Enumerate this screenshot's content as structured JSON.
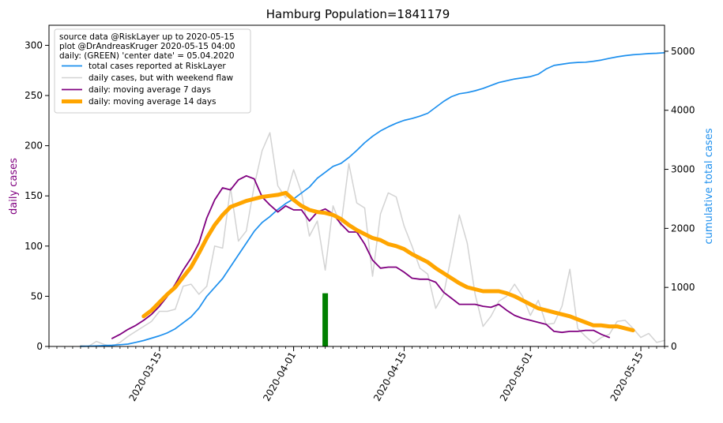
{
  "chart_data": {
    "type": "line",
    "title": "Hamburg Population=1841179",
    "ylabel_left": "daily cases",
    "ylabel_right": "cumulative total cases",
    "ylim_left": [
      0,
      320
    ],
    "ylim_right": [
      0,
      5440
    ],
    "yticks_left": [
      0,
      50,
      100,
      150,
      200,
      250,
      300
    ],
    "yticks_right": [
      0,
      1000,
      2000,
      3000,
      4000,
      5000
    ],
    "x_dates": [
      "2020-03-15",
      "2020-04-01",
      "2020-04-15",
      "2020-05-01",
      "2020-05-15"
    ],
    "xticks_major": [
      "2020-03-15",
      "2020-04-01",
      "2020-04-15",
      "2020-05-01",
      "2020-05-15"
    ],
    "x_range": [
      "2020-03-01",
      "2020-05-18"
    ],
    "grid": false,
    "legend_position": "top-left",
    "legend_header": [
      "source data @RiskLayer up to 2020-05-15",
      "plot @DrAndreasKruger 2020-05-15 04:00",
      "daily: (GREEN) 'center date' = 05.04.2020"
    ],
    "center_date_bar": {
      "date": "2020-04-05",
      "value": 53,
      "color": "#008000"
    },
    "series": [
      {
        "name": "total cases reported at RiskLayer",
        "axis": "right",
        "color": "#1e90ee",
        "width": 1.7,
        "start": "2020-03-05",
        "values": [
          2,
          5,
          10,
          15,
          20,
          30,
          40,
          70,
          100,
          140,
          180,
          230,
          300,
          400,
          500,
          650,
          850,
          1000,
          1150,
          1350,
          1550,
          1750,
          1950,
          2100,
          2200,
          2320,
          2420,
          2500,
          2600,
          2700,
          2850,
          2950,
          3050,
          3100,
          3200,
          3320,
          3450,
          3560,
          3650,
          3720,
          3780,
          3830,
          3860,
          3900,
          3950,
          4050,
          4150,
          4230,
          4280,
          4300,
          4330,
          4370,
          4420,
          4470,
          4500,
          4530,
          4550,
          4570,
          4610,
          4700,
          4760,
          4780,
          4800,
          4810,
          4815,
          4830,
          4850,
          4880,
          4905,
          4925,
          4940,
          4950,
          4960,
          4965,
          4975
        ]
      },
      {
        "name": "daily cases, but with weekend flaw",
        "axis": "left",
        "color": "#d3d3d3",
        "width": 1.5,
        "start": "2020-03-05",
        "values": [
          1,
          0,
          5,
          2,
          0,
          4,
          10,
          15,
          20,
          25,
          35,
          35,
          37,
          60,
          62,
          52,
          60,
          100,
          98,
          158,
          105,
          115,
          160,
          195,
          213,
          160,
          148,
          176,
          153,
          110,
          125,
          76,
          140,
          120,
          182,
          143,
          138,
          70,
          132,
          153,
          149,
          120,
          100,
          78,
          72,
          38,
          52,
          90,
          131,
          103,
          52,
          20,
          30,
          45,
          50,
          62,
          50,
          31,
          46,
          22,
          23,
          40,
          77,
          18,
          10,
          3,
          9,
          12,
          25,
          26,
          18,
          9,
          13,
          4,
          6
        ]
      },
      {
        "name": "daily: moving average 7 days",
        "axis": "left",
        "color": "#800080",
        "width": 1.8,
        "start": "2020-03-09",
        "values": [
          8,
          12,
          17,
          21,
          26,
          32,
          40,
          50,
          62,
          76,
          88,
          103,
          128,
          146,
          158,
          156,
          166,
          170,
          167,
          149,
          141,
          134,
          140,
          136,
          136,
          125,
          134,
          137,
          132,
          122,
          114,
          114,
          102,
          86,
          78,
          79,
          79,
          74,
          68,
          67,
          67,
          64,
          54,
          48,
          42,
          42,
          42,
          40,
          39,
          42,
          36,
          31,
          28,
          26,
          24,
          22,
          15,
          14,
          15,
          15,
          16,
          16,
          12,
          9
        ]
      },
      {
        "name": "daily: moving average 14 days",
        "axis": "left",
        "color": "#ffa500",
        "width": 5,
        "start": "2020-03-13",
        "values": [
          30,
          36,
          44,
          52,
          59,
          69,
          79,
          93,
          108,
          121,
          131,
          139,
          142,
          145,
          147,
          149,
          150,
          151,
          153,
          146,
          140,
          136,
          134,
          133,
          131,
          127,
          121,
          116,
          112,
          108,
          106,
          102,
          100,
          97,
          92,
          88,
          84,
          78,
          73,
          68,
          63,
          59,
          57,
          55,
          55,
          55,
          53,
          50,
          46,
          42,
          38,
          36,
          34,
          32,
          30,
          27,
          24,
          21,
          21,
          20,
          20,
          18,
          16
        ]
      }
    ]
  }
}
